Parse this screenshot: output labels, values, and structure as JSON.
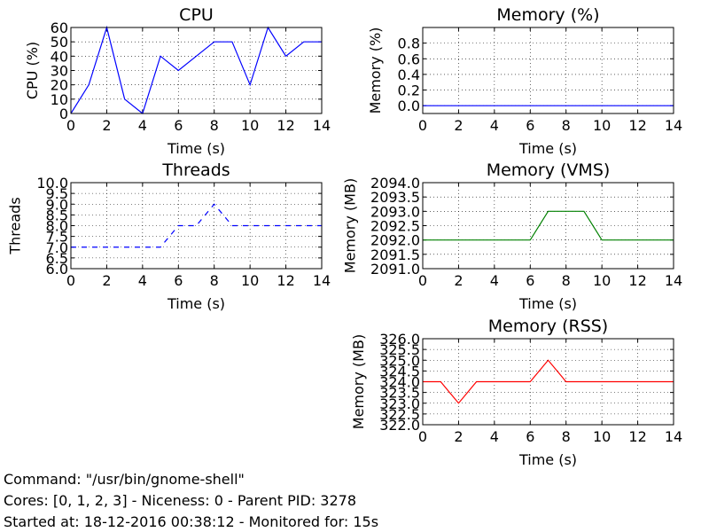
{
  "chart_data": [
    {
      "type": "line",
      "title": "CPU",
      "xlabel": "Time (s)",
      "ylabel": "CPU (%)",
      "xlim": [
        0,
        14
      ],
      "ylim": [
        0,
        60
      ],
      "xticks": [
        0,
        2,
        4,
        6,
        8,
        10,
        12,
        14
      ],
      "yticks": [
        0,
        10,
        20,
        30,
        40,
        50,
        60
      ],
      "ytick_decimals": 0,
      "grid": true,
      "color": "#0000ff",
      "dashed": false,
      "series": [
        {
          "x": [
            0,
            1,
            2,
            3,
            4,
            5,
            6,
            7,
            8,
            9,
            10,
            11,
            12,
            13,
            14
          ],
          "y": [
            0,
            20,
            60,
            10,
            0,
            40,
            30,
            40,
            50,
            50,
            20,
            60,
            40,
            50,
            50
          ]
        }
      ]
    },
    {
      "type": "line",
      "title": "Memory (%)",
      "xlabel": "Time (s)",
      "ylabel": "Memory (%)",
      "xlim": [
        0,
        14
      ],
      "ylim": [
        -0.1,
        1.0
      ],
      "xticks": [
        0,
        2,
        4,
        6,
        8,
        10,
        12,
        14
      ],
      "yticks": [
        0.0,
        0.2,
        0.4,
        0.6,
        0.8
      ],
      "ytick_decimals": 1,
      "grid": true,
      "color": "#0000ff",
      "dashed": false,
      "series": [
        {
          "x": [
            0,
            1,
            2,
            3,
            4,
            5,
            6,
            7,
            8,
            9,
            10,
            11,
            12,
            13,
            14
          ],
          "y": [
            0,
            0,
            0,
            0,
            0,
            0,
            0,
            0,
            0,
            0,
            0,
            0,
            0,
            0,
            0
          ]
        }
      ]
    },
    {
      "type": "line",
      "title": "Threads",
      "xlabel": "Time (s)",
      "ylabel": "Threads",
      "xlim": [
        0,
        14
      ],
      "ylim": [
        6.0,
        10.0
      ],
      "xticks": [
        0,
        2,
        4,
        6,
        8,
        10,
        12,
        14
      ],
      "yticks": [
        6.0,
        6.5,
        7.0,
        7.5,
        8.0,
        8.5,
        9.0,
        9.5,
        10.0
      ],
      "ytick_decimals": 1,
      "grid": true,
      "color": "#0000ff",
      "dashed": true,
      "series": [
        {
          "x": [
            0,
            1,
            2,
            3,
            4,
            5,
            6,
            7,
            8,
            9,
            10,
            11,
            12,
            13,
            14
          ],
          "y": [
            7,
            7,
            7,
            7,
            7,
            7,
            8,
            8,
            9,
            8,
            8,
            8,
            8,
            8,
            8
          ]
        }
      ]
    },
    {
      "type": "line",
      "title": "Memory (VMS)",
      "xlabel": "Time (s)",
      "ylabel": "Memory (MB)",
      "xlim": [
        0,
        14
      ],
      "ylim": [
        2091.0,
        2094.0
      ],
      "xticks": [
        0,
        2,
        4,
        6,
        8,
        10,
        12,
        14
      ],
      "yticks": [
        2091.0,
        2091.5,
        2092.0,
        2092.5,
        2093.0,
        2093.5,
        2094.0
      ],
      "ytick_decimals": 1,
      "grid": true,
      "color": "#008000",
      "dashed": false,
      "series": [
        {
          "x": [
            0,
            1,
            2,
            3,
            4,
            5,
            6,
            7,
            8,
            9,
            10,
            11,
            12,
            13,
            14
          ],
          "y": [
            2092,
            2092,
            2092,
            2092,
            2092,
            2092,
            2092,
            2093,
            2093,
            2093,
            2092,
            2092,
            2092,
            2092,
            2092
          ]
        }
      ]
    },
    {
      "type": "line",
      "title": "Memory (RSS)",
      "xlabel": "Time (s)",
      "ylabel": "Memory (MB)",
      "xlim": [
        0,
        14
      ],
      "ylim": [
        322.0,
        326.0
      ],
      "xticks": [
        0,
        2,
        4,
        6,
        8,
        10,
        12,
        14
      ],
      "yticks": [
        322.0,
        322.5,
        323.0,
        323.5,
        324.0,
        324.5,
        325.0,
        325.5,
        326.0
      ],
      "ytick_decimals": 1,
      "grid": true,
      "color": "#ff0000",
      "dashed": false,
      "series": [
        {
          "x": [
            0,
            1,
            2,
            3,
            4,
            5,
            6,
            7,
            8,
            9,
            10,
            11,
            12,
            13,
            14
          ],
          "y": [
            324,
            324,
            323,
            324,
            324,
            324,
            324,
            325,
            324,
            324,
            324,
            324,
            324,
            324,
            324
          ]
        }
      ]
    }
  ],
  "info": {
    "command": "Command: \"/usr/bin/gnome-shell\"",
    "details": "Cores: [0, 1, 2, 3] - Niceness: 0 - Parent PID: 3278",
    "started": "Started at: 18-12-2016 00:38:12 - Monitored for: 15s"
  }
}
